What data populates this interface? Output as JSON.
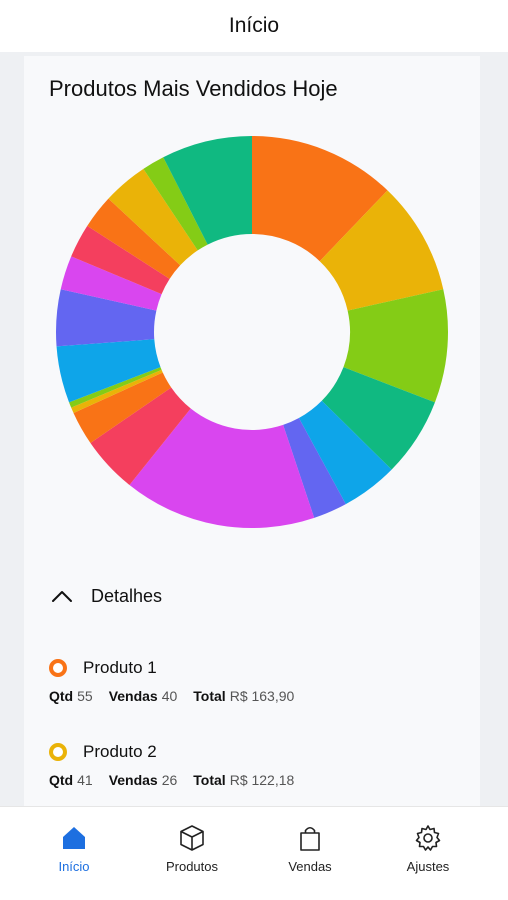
{
  "header": {
    "title": "Início"
  },
  "card": {
    "title": "Produtos Mais Vendidos Hoje"
  },
  "chart_data": {
    "type": "pie",
    "style": "donut",
    "slices": [
      {
        "value": 13.0,
        "color": "#f97316"
      },
      {
        "value": 10.0,
        "color": "#eab308"
      },
      {
        "value": 10.0,
        "color": "#84cc16"
      },
      {
        "value": 7.0,
        "color": "#10b981"
      },
      {
        "value": 5.0,
        "color": "#0ea5e9"
      },
      {
        "value": 3.0,
        "color": "#6366f1"
      },
      {
        "value": 17.0,
        "color": "#d946ef"
      },
      {
        "value": 5.0,
        "color": "#f43f5e"
      },
      {
        "value": 3.0,
        "color": "#f97316"
      },
      {
        "value": 0.5,
        "color": "#eab308"
      },
      {
        "value": 0.5,
        "color": "#84cc16"
      },
      {
        "value": 5.0,
        "color": "#0ea5e9"
      },
      {
        "value": 5.0,
        "color": "#6366f1"
      },
      {
        "value": 3.0,
        "color": "#d946ef"
      },
      {
        "value": 3.0,
        "color": "#f43f5e"
      },
      {
        "value": 3.0,
        "color": "#f97316"
      },
      {
        "value": 4.0,
        "color": "#eab308"
      },
      {
        "value": 2.0,
        "color": "#84cc16"
      },
      {
        "value": 8.0,
        "color": "#10b981"
      }
    ]
  },
  "details": {
    "label": "Detalhes"
  },
  "products": [
    {
      "name": "Produto 1",
      "color": "#f97316",
      "qtd_label": "Qtd",
      "qtd": "55",
      "vendas_label": "Vendas",
      "vendas": "40",
      "total_label": "Total",
      "total": "R$ 163,90"
    },
    {
      "name": "Produto 2",
      "color": "#eab308",
      "qtd_label": "Qtd",
      "qtd": "41",
      "vendas_label": "Vendas",
      "vendas": "26",
      "total_label": "Total",
      "total": "R$ 122,18"
    }
  ],
  "nav": {
    "items": [
      {
        "label": "Início",
        "icon": "home-icon",
        "active": true
      },
      {
        "label": "Produtos",
        "icon": "box-icon",
        "active": false
      },
      {
        "label": "Vendas",
        "icon": "shopping-bag-icon",
        "active": false
      },
      {
        "label": "Ajustes",
        "icon": "gear-icon",
        "active": false
      }
    ],
    "active_color": "#1d6fe0"
  }
}
